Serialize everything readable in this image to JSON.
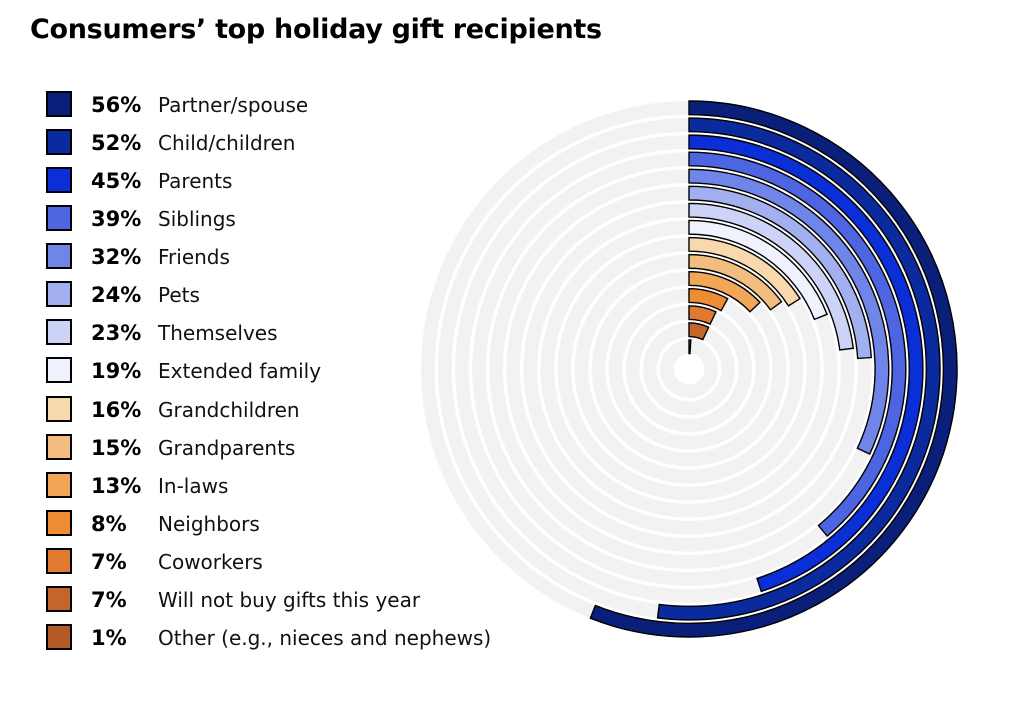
{
  "chart_data": {
    "type": "radial-bar",
    "title": "Consumers’ top holiday gift recipients",
    "max": 100,
    "unit": "%",
    "series": [
      {
        "pct_label": "56%",
        "label": "Partner/spouse",
        "value": 56,
        "color": "#0a1f7a"
      },
      {
        "pct_label": "52%",
        "label": "Child/children",
        "value": 52,
        "color": "#0a2a9e"
      },
      {
        "pct_label": "45%",
        "label": "Parents",
        "value": 45,
        "color": "#0b2fd6"
      },
      {
        "pct_label": "39%",
        "label": "Siblings",
        "value": 39,
        "color": "#4d65e0"
      },
      {
        "pct_label": "32%",
        "label": "Friends",
        "value": 32,
        "color": "#7085e8"
      },
      {
        "pct_label": "24%",
        "label": "Pets",
        "value": 24,
        "color": "#a3b0ef"
      },
      {
        "pct_label": "23%",
        "label": "Themselves",
        "value": 23,
        "color": "#ccd3f6"
      },
      {
        "pct_label": "19%",
        "label": "Extended family",
        "value": 19,
        "color": "#eff1fc"
      },
      {
        "pct_label": "16%",
        "label": "Grandchildren",
        "value": 16,
        "color": "#f8d9ae"
      },
      {
        "pct_label": "15%",
        "label": "Grandparents",
        "value": 15,
        "color": "#f3bd80"
      },
      {
        "pct_label": "13%",
        "label": "In-laws",
        "value": 13,
        "color": "#f2a658"
      },
      {
        "pct_label": "8%",
        "label": "Neighbors",
        "value": 8,
        "color": "#ee8c36"
      },
      {
        "pct_label": "7%",
        "label": "Coworkers",
        "value": 7,
        "color": "#e07a30"
      },
      {
        "pct_label": "7%",
        "label": "Will not buy gifts this year",
        "value": 7,
        "color": "#c4652a"
      },
      {
        "pct_label": "1%",
        "label": "Other (e.g., nieces and nephews)",
        "value": 1,
        "color": "#b35a28"
      }
    ],
    "track_color": "#f2f2f2",
    "grid": false,
    "legend": "left"
  }
}
